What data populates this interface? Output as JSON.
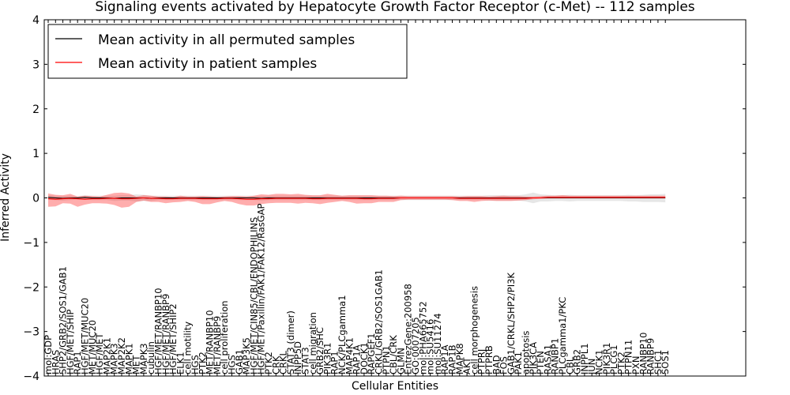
{
  "chart_data": {
    "type": "line",
    "title": "Signaling events activated by Hepatocyte Growth Factor Receptor (c-Met) -- 112 samples",
    "xlabel": "Cellular Entities",
    "ylabel": "Inferred Activity",
    "ylim": [
      -4,
      4
    ],
    "yticks": [
      -4,
      -3,
      -2,
      -1,
      0,
      1,
      2,
      3,
      4
    ],
    "grid": false,
    "legend_position": "top-left",
    "categories": [
      "mol:GDP",
      "HRAS",
      "SHP2/GRB2/SOS1/GAB1",
      "HGF/MET/SHIP",
      "RAP1",
      "HGF/MET/MUC20",
      "MET/MUC20",
      "HGF/MET",
      "MAP2K1",
      "MAPK3",
      "MAP2K2",
      "MAPK1",
      "MET",
      "MAPK3",
      "cubulin",
      "HGF/MET/RANBP10",
      "HGF/MET/RANBP9",
      "HGF/MET/SHIP2",
      "ELK1",
      "cell motility",
      "HGS",
      "PTK2",
      "MET/RANBP10",
      "MET/RANBP9",
      "cell proliferation",
      "HGS",
      "GAB1",
      "MAP3K5",
      "HGF/MET/CIN85/CBL/ENDOPHILINS",
      "HGF/MET/Paxillin/FAK1/FAK12/RasGAP",
      "PTK2",
      "CRK",
      "CRKL",
      "STAT3 (dimer)",
      "INPP5D",
      "STAT3",
      "cell migration",
      "GRB2/SHC",
      "PIK3R1",
      "RAP1",
      "NCK/PLCgamma1",
      "MAP4K1",
      "RAP1A",
      "DOCK1",
      "RAPGEF1",
      "CRKL/GRB2/SOS1GAB1",
      "PTPN1",
      "CBL/CRK",
      "GLMN",
      "EntrezGene:200958",
      "GO:0007205",
      "mol:PHA665752",
      "mol:SU5416",
      "mol:SU11274",
      "RAP1A",
      "RAP1B",
      "MAPK8",
      "AKT",
      "cell morphogenesis",
      "PTPRJ",
      "PTPRB",
      "BAD",
      "FOS",
      "GAB1/CRKL/SHP2/PI3K",
      "PAK1",
      "apoptosis",
      "PIK3CA",
      "PTEN",
      "RASA1",
      "RANBP1",
      "PLCgamma1/PKC",
      "CBL",
      "GRB2",
      "INPPL1",
      "JUN",
      "NCK1",
      "PIK3R1",
      "PLCG1",
      "PTK2",
      "PTPN11",
      "PXN",
      "RANBP10",
      "RANBP9",
      "SHC1",
      "SOS1"
    ],
    "series": [
      {
        "name": "Mean activity in all permuted samples",
        "color": "#000000",
        "values": [
          0.01,
          0.0,
          -0.01,
          0.0,
          0.0,
          0.01,
          0.0,
          0.0,
          0.0,
          -0.01,
          0.0,
          0.0,
          0.0,
          0.0,
          -0.01,
          0.0,
          0.0,
          0.0,
          0.0,
          0.0,
          0.0,
          0.0,
          0.0,
          0.0,
          0.0,
          0.0,
          0.0,
          0.0,
          0.0,
          -0.01,
          0.0,
          0.0,
          0.0,
          0.0,
          0.0,
          0.0,
          0.0,
          0.0,
          0.0,
          0.0,
          0.0,
          0.0,
          0.0,
          0.0,
          0.0,
          0.0,
          0.0,
          0.0,
          0.0,
          0.0,
          0.0,
          0.0,
          0.0,
          0.0,
          0.0,
          0.0,
          0.0,
          0.0,
          0.0,
          0.0,
          0.0,
          0.0,
          0.0,
          0.0,
          0.0,
          0.0,
          0.0,
          0.0,
          0.0,
          0.0,
          0.0,
          0.0,
          0.0,
          0.0,
          0.0,
          0.0,
          0.0,
          0.0,
          0.0,
          0.0,
          0.0,
          0.0,
          0.0,
          0.0,
          0.0
        ],
        "band_upper": [
          0.05,
          0.05,
          0.05,
          0.05,
          0.04,
          0.05,
          0.05,
          0.05,
          0.05,
          0.06,
          0.06,
          0.06,
          0.08,
          0.07,
          0.06,
          0.05,
          0.05,
          0.05,
          0.05,
          0.05,
          0.05,
          0.05,
          0.05,
          0.05,
          0.05,
          0.05,
          0.05,
          0.05,
          0.05,
          0.05,
          0.05,
          0.05,
          0.05,
          0.05,
          0.05,
          0.05,
          0.05,
          0.05,
          0.05,
          0.05,
          0.05,
          0.05,
          0.05,
          0.05,
          0.05,
          0.05,
          0.05,
          0.05,
          0.05,
          0.05,
          0.05,
          0.05,
          0.05,
          0.05,
          0.05,
          0.05,
          0.05,
          0.05,
          0.05,
          0.05,
          0.06,
          0.06,
          0.06,
          0.06,
          0.06,
          0.08,
          0.12,
          0.08,
          0.07,
          0.06,
          0.06,
          0.07,
          0.06,
          0.06,
          0.06,
          0.06,
          0.06,
          0.06,
          0.06,
          0.07,
          0.06,
          0.07,
          0.08,
          0.08,
          0.09
        ],
        "band_lower": [
          -0.05,
          -0.05,
          -0.05,
          -0.05,
          -0.04,
          -0.05,
          -0.05,
          -0.05,
          -0.05,
          -0.06,
          -0.06,
          -0.06,
          -0.08,
          -0.07,
          -0.06,
          -0.05,
          -0.05,
          -0.05,
          -0.05,
          -0.05,
          -0.05,
          -0.05,
          -0.05,
          -0.05,
          -0.05,
          -0.05,
          -0.05,
          -0.05,
          -0.05,
          -0.05,
          -0.05,
          -0.05,
          -0.05,
          -0.05,
          -0.05,
          -0.05,
          -0.05,
          -0.05,
          -0.05,
          -0.05,
          -0.05,
          -0.05,
          -0.05,
          -0.05,
          -0.05,
          -0.05,
          -0.05,
          -0.05,
          -0.05,
          -0.05,
          -0.05,
          -0.05,
          -0.05,
          -0.05,
          -0.05,
          -0.05,
          -0.05,
          -0.05,
          -0.05,
          -0.05,
          -0.06,
          -0.06,
          -0.06,
          -0.06,
          -0.06,
          -0.08,
          -0.12,
          -0.08,
          -0.08,
          -0.07,
          -0.07,
          -0.08,
          -0.07,
          -0.07,
          -0.07,
          -0.07,
          -0.07,
          -0.07,
          -0.07,
          -0.08,
          -0.08,
          -0.09,
          -0.09,
          -0.09,
          -0.1
        ]
      },
      {
        "name": "Mean activity in patient samples",
        "color": "#ff0000",
        "values": [
          -0.02,
          -0.03,
          -0.02,
          -0.01,
          -0.02,
          -0.03,
          -0.02,
          -0.02,
          -0.01,
          -0.01,
          -0.02,
          -0.02,
          -0.01,
          0.0,
          -0.01,
          -0.01,
          -0.02,
          -0.02,
          -0.01,
          -0.01,
          -0.01,
          -0.02,
          -0.02,
          -0.02,
          -0.01,
          -0.01,
          -0.02,
          -0.03,
          -0.03,
          -0.02,
          -0.02,
          -0.01,
          -0.01,
          -0.01,
          -0.01,
          -0.01,
          -0.02,
          -0.02,
          -0.01,
          -0.01,
          -0.01,
          -0.01,
          -0.01,
          -0.02,
          -0.02,
          -0.01,
          -0.01,
          -0.01,
          0.0,
          0.0,
          0.0,
          0.0,
          0.0,
          0.0,
          0.0,
          0.0,
          -0.01,
          -0.01,
          -0.01,
          -0.01,
          -0.01,
          -0.01,
          -0.01,
          -0.01,
          -0.01,
          -0.01,
          0.0,
          0.0,
          0.01,
          0.01,
          0.01,
          0.01,
          0.01,
          0.01,
          0.01,
          0.01,
          0.01,
          0.01,
          0.01,
          0.01,
          0.01,
          0.01,
          0.01,
          0.01,
          0.01
        ],
        "band_upper": [
          0.12,
          0.1,
          0.08,
          0.1,
          0.05,
          0.08,
          0.06,
          0.05,
          0.08,
          0.12,
          0.14,
          0.12,
          0.04,
          0.06,
          0.06,
          0.04,
          0.05,
          0.04,
          0.06,
          0.04,
          0.04,
          0.06,
          0.05,
          0.04,
          0.04,
          0.05,
          0.06,
          0.06,
          0.08,
          0.1,
          0.09,
          0.1,
          0.1,
          0.09,
          0.1,
          0.08,
          0.08,
          0.08,
          0.1,
          0.08,
          0.06,
          0.07,
          0.07,
          0.08,
          0.08,
          0.06,
          0.06,
          0.05,
          0.05,
          0.04,
          0.04,
          0.04,
          0.04,
          0.04,
          0.04,
          0.04,
          0.04,
          0.05,
          0.05,
          0.05,
          0.04,
          0.05,
          0.06,
          0.05,
          0.05,
          0.04,
          0.03,
          0.04,
          0.04,
          0.04,
          0.05,
          0.04,
          0.04,
          0.04,
          0.04,
          0.04,
          0.04,
          0.04,
          0.04,
          0.04,
          0.04,
          0.04,
          0.04,
          0.04,
          0.04
        ],
        "band_lower": [
          -0.18,
          -0.16,
          -0.1,
          -0.12,
          -0.18,
          -0.12,
          -0.1,
          -0.1,
          -0.12,
          -0.15,
          -0.2,
          -0.18,
          -0.08,
          -0.06,
          -0.08,
          -0.08,
          -0.1,
          -0.08,
          -0.08,
          -0.06,
          -0.08,
          -0.12,
          -0.12,
          -0.08,
          -0.06,
          -0.08,
          -0.12,
          -0.14,
          -0.14,
          -0.12,
          -0.1,
          -0.1,
          -0.1,
          -0.1,
          -0.12,
          -0.1,
          -0.1,
          -0.12,
          -0.1,
          -0.08,
          -0.06,
          -0.08,
          -0.12,
          -0.1,
          -0.1,
          -0.08,
          -0.08,
          -0.08,
          -0.05,
          -0.04,
          -0.04,
          -0.04,
          -0.04,
          -0.04,
          -0.04,
          -0.05,
          -0.06,
          -0.06,
          -0.08,
          -0.06,
          -0.05,
          -0.06,
          -0.06,
          -0.06,
          -0.05,
          -0.04,
          -0.03,
          -0.02,
          -0.02,
          -0.02,
          -0.02,
          -0.02,
          -0.02,
          -0.02,
          -0.02,
          -0.02,
          -0.02,
          -0.02,
          -0.02,
          -0.02,
          -0.02,
          -0.02,
          -0.02,
          -0.02,
          -0.02
        ]
      }
    ]
  }
}
